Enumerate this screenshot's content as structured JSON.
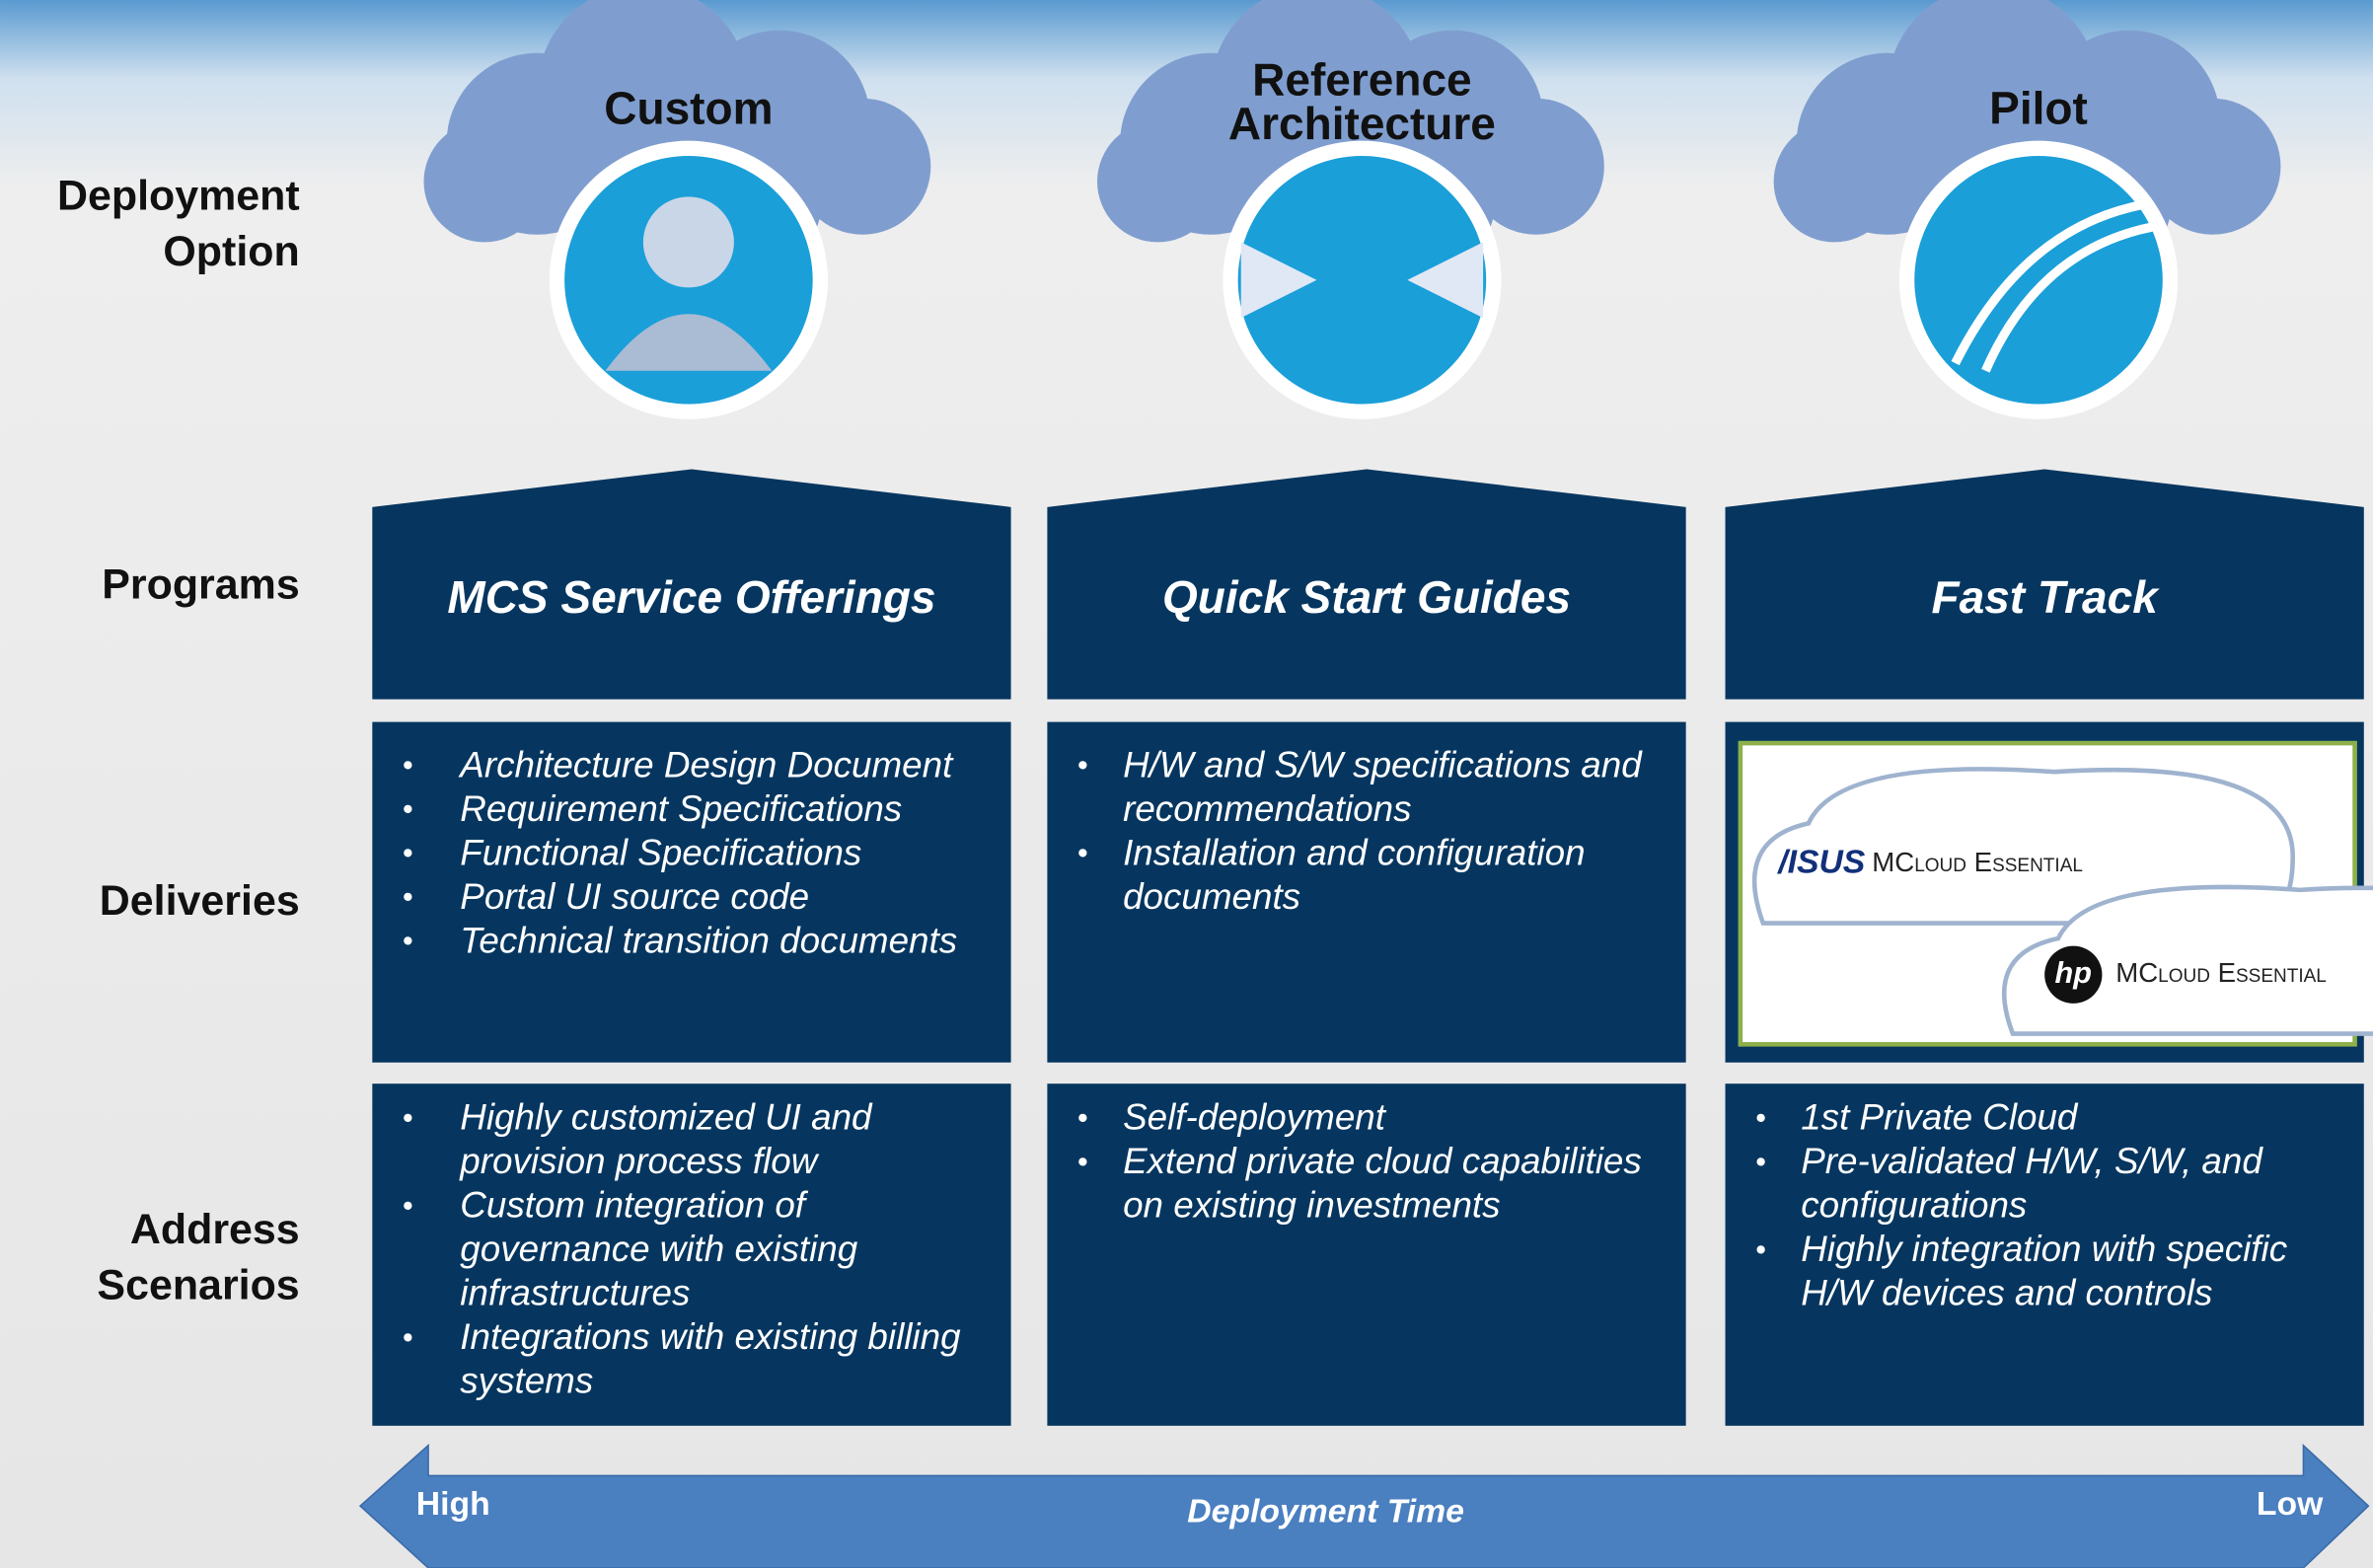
{
  "row_labels": [
    [
      "Deployment",
      "Option"
    ],
    [
      "Programs"
    ],
    [
      "Deliveries"
    ],
    [
      "Address",
      "Scenarios"
    ]
  ],
  "columns": [
    {
      "option": [
        "Custom"
      ],
      "program": "MCS Service Offerings",
      "deliveries": [
        [
          "Architecture Design Document"
        ],
        [
          "Requirement Specifications"
        ],
        [
          "Functional Specifications"
        ],
        [
          "Portal UI source code"
        ],
        [
          "Technical transition documents"
        ]
      ],
      "scenarios": [
        [
          "Highly customized UI and",
          "provision process flow"
        ],
        [
          "Custom integration of",
          "governance with existing",
          "infrastructures"
        ],
        [
          "Integrations with existing billing",
          "systems"
        ]
      ]
    },
    {
      "option": [
        "Reference",
        "Architecture"
      ],
      "program": "Quick Start Guides",
      "deliveries": [
        [
          "H/W and S/W specifications and",
          "recommendations"
        ],
        [
          "Installation and configuration",
          "documents"
        ]
      ],
      "scenarios": [
        [
          "Self-deployment"
        ],
        [
          "Extend private cloud capabilities",
          "on existing investments"
        ]
      ]
    },
    {
      "option": [
        "Pilot"
      ],
      "program": "Fast Track",
      "scenarios": [
        [
          "1st Private Cloud"
        ],
        [
          "Pre-validated H/W, S/W, and",
          "configurations"
        ],
        [
          "Highly integration with specific",
          "H/W devices and controls"
        ]
      ]
    }
  ],
  "logos": {
    "asus": "/ISUS",
    "asus_product": "MCloud Essential",
    "hp": "hp",
    "hp_product": "MCloud Essential"
  },
  "arrow": {
    "left": "High",
    "center": "Deployment Time",
    "right": "Low"
  }
}
